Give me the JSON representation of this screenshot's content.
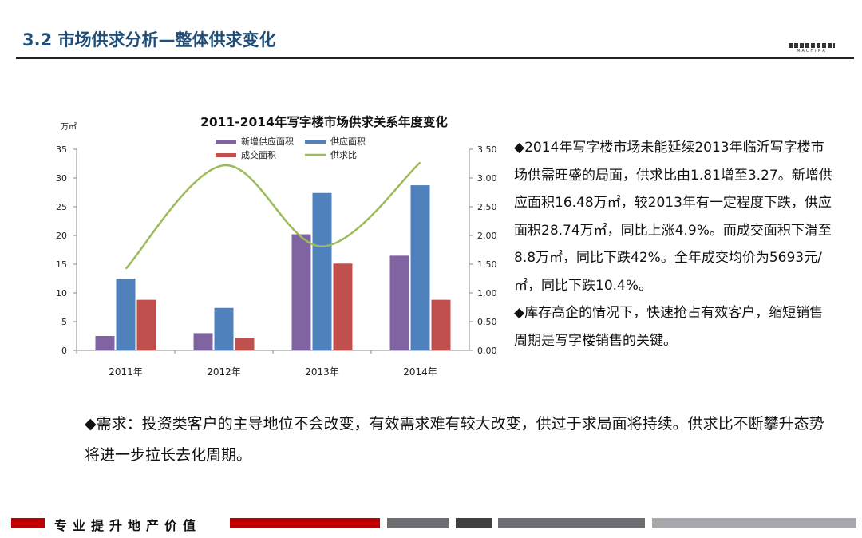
{
  "header": {
    "title": "3.2 市场供求分析—整体供求变化"
  },
  "chart_data": {
    "type": "bar",
    "title": "2011-2014年写字楼市场供求关系年度变化",
    "ylabel": "万㎡",
    "categories": [
      "2011年",
      "2012年",
      "2013年",
      "2014年"
    ],
    "ylim": [
      0,
      35
    ],
    "y_ticks": [
      "0",
      "5",
      "10",
      "15",
      "20",
      "25",
      "30",
      "35"
    ],
    "y2lim": [
      0,
      3.5
    ],
    "y2_ticks": [
      "0.00",
      "0.50",
      "1.00",
      "1.50",
      "2.00",
      "2.50",
      "3.00",
      "3.50"
    ],
    "series": [
      {
        "name": "新增供应面积",
        "color": "#8064a2",
        "values": [
          2.5,
          3.0,
          20.2,
          16.48
        ]
      },
      {
        "name": "供应面积",
        "color": "#4f81bd",
        "values": [
          12.5,
          7.4,
          27.4,
          28.74
        ]
      },
      {
        "name": "成交面积",
        "color": "#c0504d",
        "values": [
          8.8,
          2.2,
          15.1,
          8.8
        ]
      }
    ],
    "line_series": {
      "name": "供求比",
      "color": "#9bbb59",
      "axis": "right",
      "values": [
        1.42,
        3.22,
        1.81,
        3.27
      ]
    },
    "legend": "top-center",
    "grid": false
  },
  "bullets": [
    "◆2014年写字楼市场未能延续2013年临沂写字楼市场供需旺盛的局面，供求比由1.81增至3.27。新增供应面积16.48万㎡，较2013年有一定程度下跌，供应面积28.74万㎡，同比上涨4.9%。而成交面积下滑至8.8万㎡，同比下跌42%。全年成交均价为5693元/㎡，同比下跌10.4%。",
    "◆库存高企的情况下，快速抢占有效客户，缩短销售周期是写字楼销售的关键。"
  ],
  "demand_text": "◆需求：投资类客户的主导地位不会改变，有效需求难有较大改变，供过于求局面将持续。供求比不断攀升态势将进一步拉长去化周期。",
  "footer": {
    "slogan": "专业提升地产价值",
    "colors": {
      "red": "#c00000",
      "dark": "#404040",
      "gray": "#6d6e71",
      "light": "#a6a8ab"
    }
  }
}
